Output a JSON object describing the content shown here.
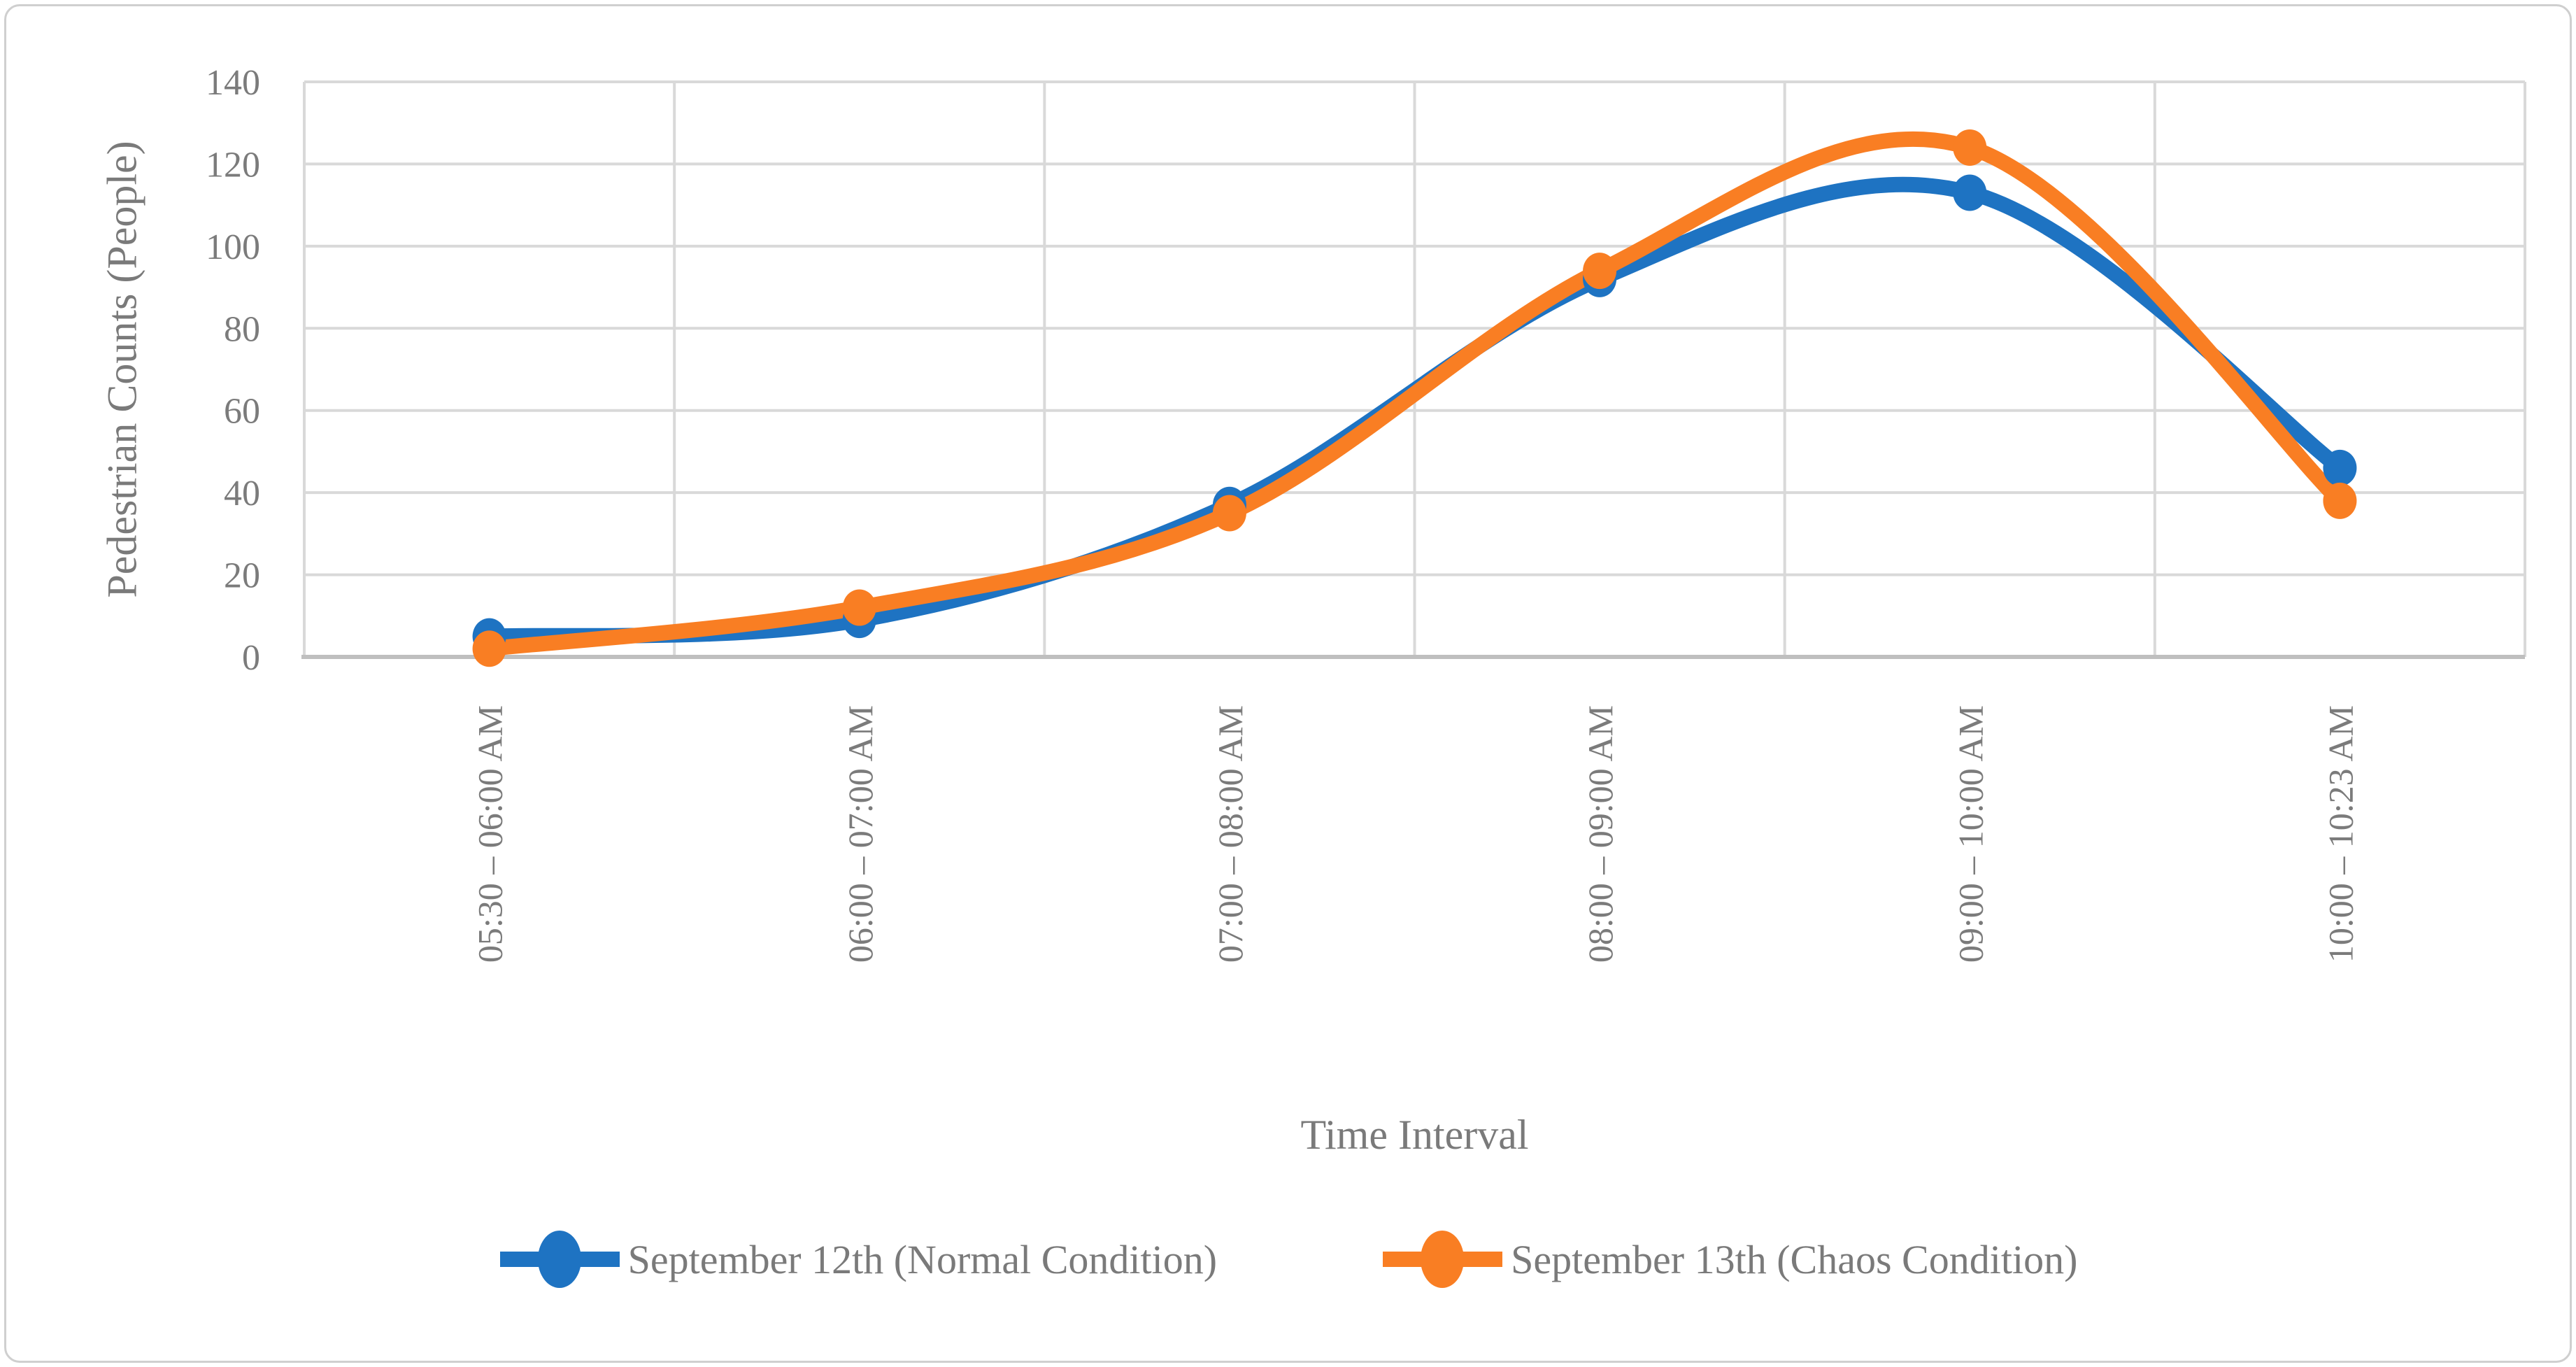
{
  "chart_data": {
    "type": "line",
    "smoothed_lines": true,
    "title": "",
    "xlabel": "Time Interval",
    "ylabel": "Pedestrian Counts (People)",
    "categories": [
      "05:30 – 06:00 AM",
      "06:00 – 07:00 AM",
      "07:00 – 08:00 AM",
      "08:00 – 09:00 AM",
      "09:00 – 10:00 AM",
      "10:00 – 10:23 AM"
    ],
    "series": [
      {
        "name": "September 12th (Normal Condition)",
        "color": "#1e73c2",
        "values": [
          5,
          9,
          37,
          92,
          113,
          46
        ]
      },
      {
        "name": "September 13th (Chaos Condition)",
        "color": "#f97e23",
        "values": [
          2,
          12,
          35,
          94,
          124,
          38
        ]
      }
    ],
    "ylim": [
      0,
      140
    ],
    "ytick_step": 20,
    "yticks": [
      0,
      20,
      40,
      60,
      80,
      100,
      120,
      140
    ],
    "grid": "horizontal value lines and vertical category-boundary lines, light gray",
    "legend_position": "bottom-center"
  },
  "styles": {
    "background_color": "#ffffff",
    "figure_border_color": "#cfcfcf",
    "gridline_color": "#d9d9d9",
    "axis_line_color": "#bfbfbf",
    "tick_label_color": "#7b7b7b",
    "title_text_color": "#7a7a7a",
    "marker_shape": "filled circle"
  }
}
